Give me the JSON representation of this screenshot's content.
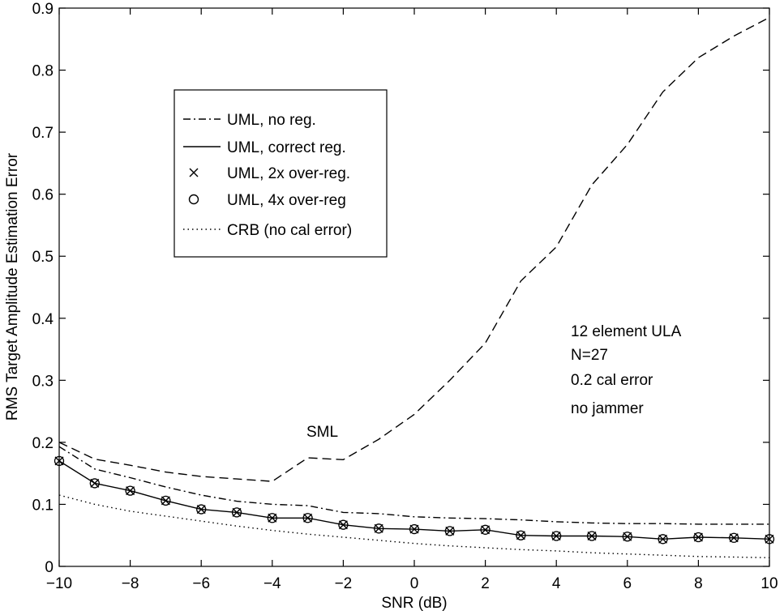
{
  "chart_data": {
    "type": "line",
    "xlabel": "SNR (dB)",
    "ylabel": "RMS Target Amplitude Estimation Error",
    "xlim": [
      -10,
      10
    ],
    "ylim": [
      0,
      0.9
    ],
    "xticks": [
      "−10",
      "−8",
      "−6",
      "−4",
      "−2",
      "0",
      "2",
      "4",
      "6",
      "8",
      "10"
    ],
    "yticks": [
      "0",
      "0.1",
      "0.2",
      "0.3",
      "0.4",
      "0.5",
      "0.6",
      "0.7",
      "0.8",
      "0.9"
    ],
    "grid": false,
    "legend_position": "upper-left",
    "annotations": {
      "sml_label": "SML",
      "info_lines": [
        "12 element ULA",
        "N=27",
        "0.2 cal error",
        "no jammer"
      ]
    },
    "series": [
      {
        "name": "UML, no reg.",
        "style": "dashdot",
        "x": [
          -10,
          -9,
          -8,
          -7,
          -6,
          -5,
          -4,
          -3,
          -2,
          -1,
          0,
          1,
          2,
          3,
          4,
          5,
          6,
          7,
          8,
          9,
          10
        ],
        "values": [
          0.193,
          0.157,
          0.143,
          0.128,
          0.115,
          0.105,
          0.1,
          0.098,
          0.087,
          0.085,
          0.08,
          0.078,
          0.077,
          0.075,
          0.072,
          0.07,
          0.069,
          0.069,
          0.068,
          0.068,
          0.068
        ]
      },
      {
        "name": "UML, correct reg.",
        "style": "solid",
        "x": [
          -10,
          -9,
          -8,
          -7,
          -6,
          -5,
          -4,
          -3,
          -2,
          -1,
          0,
          1,
          2,
          3,
          4,
          5,
          6,
          7,
          8,
          9,
          10
        ],
        "values": [
          0.17,
          0.134,
          0.122,
          0.106,
          0.092,
          0.087,
          0.078,
          0.078,
          0.067,
          0.061,
          0.06,
          0.057,
          0.059,
          0.05,
          0.049,
          0.049,
          0.048,
          0.044,
          0.047,
          0.046,
          0.044
        ]
      },
      {
        "name": "UML, 2x over-reg.",
        "style": "x-marker",
        "x": [
          -10,
          -9,
          -8,
          -7,
          -6,
          -5,
          -4,
          -3,
          -2,
          -1,
          0,
          1,
          2,
          3,
          4,
          5,
          6,
          7,
          8,
          9,
          10
        ],
        "values": [
          0.17,
          0.134,
          0.122,
          0.106,
          0.092,
          0.087,
          0.078,
          0.078,
          0.067,
          0.061,
          0.06,
          0.057,
          0.059,
          0.05,
          0.049,
          0.049,
          0.048,
          0.044,
          0.047,
          0.046,
          0.044
        ]
      },
      {
        "name": "UML, 4x over-reg",
        "style": "o-marker",
        "x": [
          -10,
          -9,
          -8,
          -7,
          -6,
          -5,
          -4,
          -3,
          -2,
          -1,
          0,
          1,
          2,
          3,
          4,
          5,
          6,
          7,
          8,
          9,
          10
        ],
        "values": [
          0.17,
          0.134,
          0.122,
          0.106,
          0.092,
          0.087,
          0.078,
          0.078,
          0.067,
          0.061,
          0.06,
          0.057,
          0.059,
          0.05,
          0.049,
          0.049,
          0.048,
          0.044,
          0.047,
          0.046,
          0.044
        ]
      },
      {
        "name": "CRB (no cal error)",
        "style": "dotted",
        "x": [
          -10,
          -9,
          -8,
          -7,
          -6,
          -5,
          -4,
          -3,
          -2,
          -1,
          0,
          1,
          2,
          3,
          4,
          5,
          6,
          7,
          8,
          9,
          10
        ],
        "values": [
          0.115,
          0.1,
          0.089,
          0.081,
          0.073,
          0.065,
          0.058,
          0.052,
          0.047,
          0.042,
          0.037,
          0.033,
          0.03,
          0.027,
          0.025,
          0.022,
          0.02,
          0.018,
          0.016,
          0.015,
          0.014
        ]
      },
      {
        "name": "",
        "label": "SML",
        "style": "dashed",
        "x": [
          -10,
          -9,
          -8,
          -7,
          -6,
          -5,
          -4,
          -3,
          -2,
          -1,
          0,
          1,
          2,
          3,
          4,
          5,
          6,
          7,
          8,
          9,
          10
        ],
        "values": [
          0.2,
          0.173,
          0.163,
          0.152,
          0.145,
          0.141,
          0.137,
          0.175,
          0.172,
          0.205,
          0.245,
          0.3,
          0.36,
          0.46,
          0.515,
          0.615,
          0.68,
          0.765,
          0.82,
          0.855,
          0.885
        ]
      }
    ]
  }
}
